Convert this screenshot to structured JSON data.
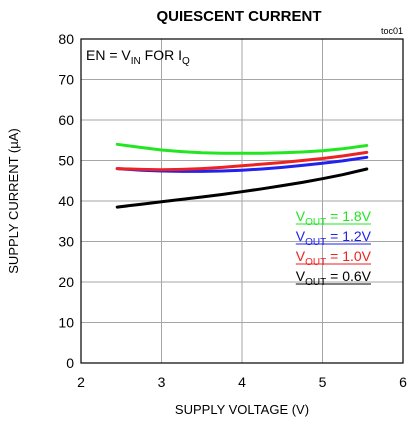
{
  "chart_data": {
    "type": "line",
    "title": "QUIESCENT CURRENT",
    "figure_id": "toc01",
    "xlabel": "SUPPLY VOLTAGE (V)",
    "ylabel": "SUPPLY CURRENT (µA)",
    "xlim": [
      2,
      6
    ],
    "ylim": [
      0,
      80
    ],
    "xticks": [
      "2",
      "3",
      "4",
      "5",
      "6"
    ],
    "yticks": [
      "0",
      "10",
      "20",
      "30",
      "40",
      "50",
      "60",
      "70",
      "80"
    ],
    "grid": true,
    "annotation": {
      "parts": [
        {
          "t": "EN = V",
          "sub": false
        },
        {
          "t": "IN",
          "sub": true
        },
        {
          "t": " FOR I",
          "sub": false
        },
        {
          "t": "Q",
          "sub": true
        }
      ]
    },
    "legend_placement": "lower-right",
    "series": [
      {
        "name": "VOUT = 1.8V",
        "label_main": "V",
        "label_sub": "OUT",
        "label_rest": " = 1.8V",
        "color": "#22e622",
        "x": [
          2.45,
          2.75,
          3.0,
          3.25,
          3.5,
          3.75,
          4.0,
          4.25,
          4.5,
          4.75,
          5.0,
          5.25,
          5.55
        ],
        "y": [
          54.0,
          53.2,
          52.6,
          52.2,
          51.9,
          51.8,
          51.8,
          51.8,
          51.9,
          52.1,
          52.4,
          52.9,
          53.7
        ]
      },
      {
        "name": "VOUT = 1.2V",
        "label_main": "V",
        "label_sub": "OUT",
        "label_rest": " = 1.2V",
        "color": "#2222ee",
        "x": [
          2.45,
          2.75,
          3.0,
          3.25,
          3.5,
          3.75,
          4.0,
          4.25,
          4.5,
          4.75,
          5.0,
          5.25,
          5.55
        ],
        "y": [
          48.0,
          47.6,
          47.4,
          47.3,
          47.3,
          47.4,
          47.6,
          47.9,
          48.3,
          48.8,
          49.3,
          49.9,
          50.8
        ]
      },
      {
        "name": "VOUT = 1.0V",
        "label_main": "V",
        "label_sub": "OUT",
        "label_rest": " = 1.0V",
        "color": "#ee2222",
        "x": [
          2.45,
          2.75,
          3.0,
          3.25,
          3.5,
          3.75,
          4.0,
          4.25,
          4.5,
          4.75,
          5.0,
          5.25,
          5.55
        ],
        "y": [
          48.0,
          47.8,
          47.7,
          47.8,
          48.0,
          48.3,
          48.7,
          49.1,
          49.5,
          50.0,
          50.5,
          51.1,
          52.0
        ]
      },
      {
        "name": "VOUT = 0.6V",
        "label_main": "V",
        "label_sub": "OUT",
        "label_rest": " = 0.6V",
        "color": "#000000",
        "x": [
          2.45,
          2.75,
          3.0,
          3.25,
          3.5,
          3.75,
          4.0,
          4.25,
          4.5,
          4.75,
          5.0,
          5.25,
          5.55
        ],
        "y": [
          38.5,
          39.2,
          39.8,
          40.4,
          41.0,
          41.6,
          42.3,
          43.0,
          43.8,
          44.6,
          45.5,
          46.5,
          47.9
        ]
      }
    ]
  }
}
